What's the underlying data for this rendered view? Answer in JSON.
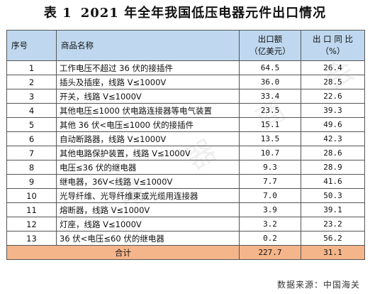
{
  "title": {
    "label": "表 1",
    "text": "2021 年全年我国低压电器元件出口情况"
  },
  "table": {
    "headers": {
      "index": "序号",
      "name": "商品名称",
      "export_line1": "出口额",
      "export_line2": "（亿美元）",
      "yoy_line1": "出 口 同 比",
      "yoy_line2": "（%）"
    },
    "rows": [
      {
        "index": "1",
        "name": "工作电压不超过 36 伏的接插件",
        "export": "64.5",
        "yoy": "26.4"
      },
      {
        "index": "2",
        "name": "插头及插座，线路 V≤1000V",
        "export": "36.0",
        "yoy": "28.5"
      },
      {
        "index": "3",
        "name": "开关，线路 V≤1000V",
        "export": "33.4",
        "yoy": "22.6"
      },
      {
        "index": "4",
        "name": "其他电压≤1000 伏电路连接器等电气装置",
        "export": "23.5",
        "yoy": "39.3"
      },
      {
        "index": "5",
        "name": "其他 36 伏<电压≤1000 伏的接插件",
        "export": "15.1",
        "yoy": "49.6"
      },
      {
        "index": "6",
        "name": "自动断路器，线路 V≤1000V",
        "export": "13.5",
        "yoy": "42.3"
      },
      {
        "index": "7",
        "name": "其他电路保护装置，线路 V≤1000V",
        "export": "10.7",
        "yoy": "28.6"
      },
      {
        "index": "8",
        "name": "电压≤36 伏的继电器",
        "export": "9.3",
        "yoy": "28.9"
      },
      {
        "index": "9",
        "name": "继电器，36V<线路 V≤1000V",
        "export": "7.7",
        "yoy": "41.6"
      },
      {
        "index": "10",
        "name": "光导纤维、光导纤维束或光缆用连接器",
        "export": "7.0",
        "yoy": "50.3"
      },
      {
        "index": "11",
        "name": "熔断器，线路 V≤1000V",
        "export": "3.9",
        "yoy": "39.1"
      },
      {
        "index": "12",
        "name": "灯座，线路 V≤1000V",
        "export": "3.2",
        "yoy": "23.2"
      },
      {
        "index": "13",
        "name": "36 伏<电压≤60 伏的继电器",
        "export": "0.2",
        "yoy": "56.2"
      }
    ],
    "total": {
      "label": "合计",
      "export": "227.7",
      "yoy": "31.1"
    }
  },
  "source": "数据来源：中国海关",
  "watermark": "电 器 商 会",
  "colors": {
    "header_bg": "#bfd8ef",
    "total_bg": "#f5b58a"
  }
}
